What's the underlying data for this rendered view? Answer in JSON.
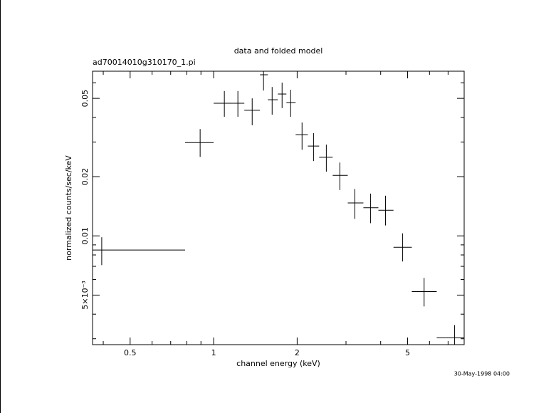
{
  "chart_data": {
    "type": "scatter",
    "title": "data and folded model",
    "subtitle": "ad70014010g310170_1.pi",
    "xlabel": "channel energy (keV)",
    "ylabel": "normalized counts/sec/keV",
    "annotation": "30-May-1998 04:00",
    "color": "#000000",
    "xscale": "log",
    "yscale": "log",
    "x": [
      0.395,
      0.894,
      1.093,
      1.223,
      1.377,
      1.513,
      1.625,
      1.765,
      1.895,
      2.083,
      2.291,
      2.548,
      2.851,
      3.229,
      3.676,
      4.165,
      4.801,
      5.737,
      7.39
    ],
    "xlo": [
      0.36,
      0.789,
      1.0,
      1.173,
      1.29,
      1.469,
      1.568,
      1.704,
      1.829,
      1.975,
      2.185,
      2.401,
      2.686,
      3.044,
      3.466,
      3.925,
      4.449,
      5.181,
      6.37
    ],
    "xhi": [
      0.789,
      1.0,
      1.173,
      1.29,
      1.469,
      1.568,
      1.704,
      1.829,
      1.975,
      2.185,
      2.401,
      2.686,
      3.044,
      3.466,
      3.925,
      4.449,
      5.181,
      6.37,
      8.1
    ],
    "y": [
      0.00847,
      0.0298,
      0.0472,
      0.0472,
      0.0435,
      0.0659,
      0.0492,
      0.0526,
      0.0476,
      0.0327,
      0.0286,
      0.0251,
      0.0203,
      0.0147,
      0.0139,
      0.0135,
      0.00875,
      0.00521,
      0.00303
    ],
    "ylo": [
      0.0071,
      0.0252,
      0.0403,
      0.0403,
      0.0365,
      0.0548,
      0.0413,
      0.0446,
      0.0403,
      0.0274,
      0.024,
      0.0212,
      0.0171,
      0.0122,
      0.0116,
      0.0113,
      0.00741,
      0.00438,
      0.0026
    ],
    "yhi": [
      0.00984,
      0.0349,
      0.0545,
      0.0545,
      0.05,
      0.075,
      0.0571,
      0.0601,
      0.0553,
      0.0377,
      0.0333,
      0.0291,
      0.0236,
      0.0173,
      0.0164,
      0.016,
      0.0103,
      0.00611,
      0.00352
    ],
    "xlim": [
      0.366,
      8.0
    ],
    "ylim": [
      0.0028,
      0.0687
    ],
    "xticks": [
      0.5,
      1,
      2,
      5
    ],
    "yticks": [
      {
        "value": 0.005,
        "label": "5×10⁻³"
      },
      0.01,
      0.02,
      0.05
    ],
    "xminor": [
      0.4,
      0.6,
      0.7,
      0.8,
      0.9,
      3,
      4,
      6,
      7,
      8
    ],
    "yminor": [
      0.003,
      0.004,
      0.006,
      0.007,
      0.008,
      0.009,
      0.03,
      0.04,
      0.06
    ]
  }
}
